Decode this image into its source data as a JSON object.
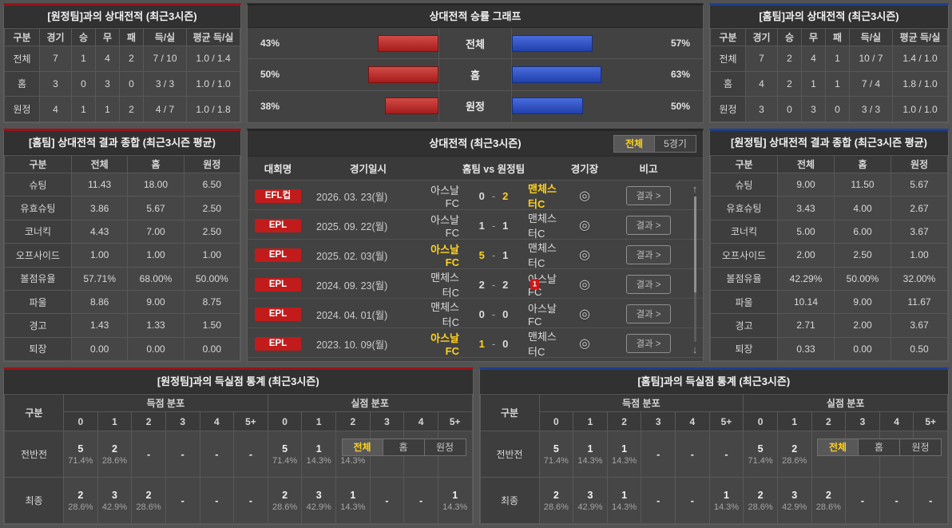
{
  "colors": {
    "accent_red": "#99131a",
    "accent_blue": "#1c3f8e",
    "bar_red": "#b52222",
    "bar_blue": "#2c53c4",
    "highlight_yellow": "#ffd21e",
    "badge_red": "#c21b1b"
  },
  "icons": {
    "scroll_up": "↑",
    "scroll_down": "↓",
    "stadium": "◎"
  },
  "vs_away_record": {
    "title": "[원정팀]과의 상대전적 (최근3시즌)",
    "headers": [
      "구분",
      "경기",
      "승",
      "무",
      "패",
      "득/실",
      "평균 득/실"
    ],
    "rows": [
      {
        "label": "전체",
        "games": "7",
        "win": "1",
        "draw": "4",
        "loss": "2",
        "score": "7 / 10",
        "avg": "1.0 / 1.4"
      },
      {
        "label": "홈",
        "games": "3",
        "win": "0",
        "draw": "3",
        "loss": "0",
        "score": "3 / 3",
        "avg": "1.0 / 1.0"
      },
      {
        "label": "원정",
        "games": "4",
        "win": "1",
        "draw": "1",
        "loss": "2",
        "score": "4 / 7",
        "avg": "1.0 / 1.8"
      }
    ]
  },
  "winrate_graph": {
    "title": "상대전적 승률 그래프",
    "rows": [
      {
        "label": "전체",
        "left_pct": 43,
        "left_pct_label": "43%",
        "right_pct": 57,
        "right_pct_label": "57%"
      },
      {
        "label": "홈",
        "left_pct": 50,
        "left_pct_label": "50%",
        "right_pct": 63,
        "right_pct_label": "63%"
      },
      {
        "label": "원정",
        "left_pct": 38,
        "left_pct_label": "38%",
        "right_pct": 50,
        "right_pct_label": "50%"
      }
    ]
  },
  "vs_home_record": {
    "title": "[홈팀]과의 상대전적 (최근3시즌)",
    "headers": [
      "구분",
      "경기",
      "승",
      "무",
      "패",
      "득/실",
      "평균 득/실"
    ],
    "rows": [
      {
        "label": "전체",
        "games": "7",
        "win": "2",
        "draw": "4",
        "loss": "1",
        "score": "10 / 7",
        "avg": "1.4 / 1.0"
      },
      {
        "label": "홈",
        "games": "4",
        "win": "2",
        "draw": "1",
        "loss": "1",
        "score": "7 / 4",
        "avg": "1.8 / 1.0"
      },
      {
        "label": "원정",
        "games": "3",
        "win": "0",
        "draw": "3",
        "loss": "0",
        "score": "3 / 3",
        "avg": "1.0 / 1.0"
      }
    ]
  },
  "home_summary": {
    "title": "[홈팀] 상대전적 결과 종합 (최근3시즌 평균)",
    "headers": [
      "구분",
      "전체",
      "홈",
      "원정"
    ],
    "rows": [
      {
        "label": "슈팅",
        "total": "11.43",
        "home": "18.00",
        "away": "6.50"
      },
      {
        "label": "유효슈팅",
        "total": "3.86",
        "home": "5.67",
        "away": "2.50"
      },
      {
        "label": "코너킥",
        "total": "4.43",
        "home": "7.00",
        "away": "2.50"
      },
      {
        "label": "오프사이드",
        "total": "1.00",
        "home": "1.00",
        "away": "1.00"
      },
      {
        "label": "볼점유율",
        "total": "57.71%",
        "home": "68.00%",
        "away": "50.00%"
      },
      {
        "label": "파울",
        "total": "8.86",
        "home": "9.00",
        "away": "8.75"
      },
      {
        "label": "경고",
        "total": "1.43",
        "home": "1.33",
        "away": "1.50"
      },
      {
        "label": "퇴장",
        "total": "0.00",
        "home": "0.00",
        "away": "0.00"
      }
    ]
  },
  "h2h_matches": {
    "title": "상대전적 (최근3시즌)",
    "tabs": {
      "all": "전체",
      "five": "5경기"
    },
    "headers": {
      "league": "대회명",
      "date": "경기일시",
      "match": "홈팀 vs 원정팀",
      "stadium": "경기장",
      "note": "비고"
    },
    "score_sep": "-",
    "result_button": "결과 >",
    "rows": [
      {
        "league": "EFL컵",
        "date": "2026. 03. 23(월)",
        "home": "아스날FC",
        "home_score": "0",
        "away_score": "2",
        "away": "맨체스터C",
        "home_win": "",
        "away_win": "1",
        "red_card": ""
      },
      {
        "league": "EPL",
        "date": "2025. 09. 22(월)",
        "home": "아스날FC",
        "home_score": "1",
        "away_score": "1",
        "away": "맨체스터C",
        "home_win": "",
        "away_win": "",
        "red_card": ""
      },
      {
        "league": "EPL",
        "date": "2025. 02. 03(월)",
        "home": "아스날FC",
        "home_score": "5",
        "away_score": "1",
        "away": "맨체스터C",
        "home_win": "1",
        "away_win": "",
        "red_card": ""
      },
      {
        "league": "EPL",
        "date": "2024. 09. 23(월)",
        "home": "맨체스터C",
        "home_score": "2",
        "away_score": "2",
        "away": "아스날FC",
        "home_win": "",
        "away_win": "",
        "red_card": "1"
      },
      {
        "league": "EPL",
        "date": "2024. 04. 01(월)",
        "home": "맨체스터C",
        "home_score": "0",
        "away_score": "0",
        "away": "아스날FC",
        "home_win": "",
        "away_win": "",
        "red_card": ""
      },
      {
        "league": "EPL",
        "date": "2023. 10. 09(월)",
        "home": "아스날FC",
        "home_score": "1",
        "away_score": "0",
        "away": "맨체스터C",
        "home_win": "1",
        "away_win": "",
        "red_card": ""
      }
    ]
  },
  "away_summary": {
    "title": "[원정팀] 상대전적 결과 종합 (최근3시즌 평균)",
    "headers": [
      "구분",
      "전체",
      "홈",
      "원정"
    ],
    "rows": [
      {
        "label": "슈팅",
        "total": "9.00",
        "home": "11.50",
        "away": "5.67"
      },
      {
        "label": "유효슈팅",
        "total": "3.43",
        "home": "4.00",
        "away": "2.67"
      },
      {
        "label": "코너킥",
        "total": "5.00",
        "home": "6.00",
        "away": "3.67"
      },
      {
        "label": "오프사이드",
        "total": "2.00",
        "home": "2.50",
        "away": "1.00"
      },
      {
        "label": "볼점유율",
        "total": "42.29%",
        "home": "50.00%",
        "away": "32.00%"
      },
      {
        "label": "파울",
        "total": "10.14",
        "home": "9.00",
        "away": "11.67"
      },
      {
        "label": "경고",
        "total": "2.71",
        "home": "2.00",
        "away": "3.67"
      },
      {
        "label": "퇴장",
        "total": "0.33",
        "home": "0.00",
        "away": "0.50"
      }
    ]
  },
  "away_goal_stats": {
    "title": "[원정팀]과의 득실점 통계 (최근3시즌)",
    "tabs": {
      "all": "전체",
      "home": "홈",
      "away": "원정"
    },
    "col_header": "구분",
    "groups": {
      "scored": "득점 분포",
      "conceded": "실점 분포"
    },
    "bins": [
      "0",
      "1",
      "2",
      "3",
      "4",
      "5+"
    ],
    "rows": [
      {
        "label": "전반전",
        "cells": [
          {
            "n": "5",
            "p": "71.4%"
          },
          {
            "n": "2",
            "p": "28.6%"
          },
          {
            "n": "-",
            "p": ""
          },
          {
            "n": "-",
            "p": ""
          },
          {
            "n": "-",
            "p": ""
          },
          {
            "n": "-",
            "p": ""
          },
          {
            "n": "5",
            "p": "71.4%"
          },
          {
            "n": "1",
            "p": "14.3%"
          },
          {
            "n": "1",
            "p": "14.3%"
          },
          {
            "n": "-",
            "p": ""
          },
          {
            "n": "-",
            "p": ""
          },
          {
            "n": "-",
            "p": ""
          }
        ]
      },
      {
        "label": "최종",
        "cells": [
          {
            "n": "2",
            "p": "28.6%"
          },
          {
            "n": "3",
            "p": "42.9%"
          },
          {
            "n": "2",
            "p": "28.6%"
          },
          {
            "n": "-",
            "p": ""
          },
          {
            "n": "-",
            "p": ""
          },
          {
            "n": "-",
            "p": ""
          },
          {
            "n": "2",
            "p": "28.6%"
          },
          {
            "n": "3",
            "p": "42.9%"
          },
          {
            "n": "1",
            "p": "14.3%"
          },
          {
            "n": "-",
            "p": ""
          },
          {
            "n": "-",
            "p": ""
          },
          {
            "n": "1",
            "p": "14.3%"
          }
        ]
      }
    ]
  },
  "home_goal_stats": {
    "title": "[홈팀]과의 득실점 통계 (최근3시즌)",
    "tabs": {
      "all": "전체",
      "home": "홈",
      "away": "원정"
    },
    "col_header": "구분",
    "groups": {
      "scored": "득점 분포",
      "conceded": "실점 분포"
    },
    "bins": [
      "0",
      "1",
      "2",
      "3",
      "4",
      "5+"
    ],
    "rows": [
      {
        "label": "전반전",
        "cells": [
          {
            "n": "5",
            "p": "71.4%"
          },
          {
            "n": "1",
            "p": "14.3%"
          },
          {
            "n": "1",
            "p": "14.3%"
          },
          {
            "n": "-",
            "p": ""
          },
          {
            "n": "-",
            "p": ""
          },
          {
            "n": "-",
            "p": ""
          },
          {
            "n": "5",
            "p": "71.4%"
          },
          {
            "n": "2",
            "p": "28.6%"
          },
          {
            "n": "-",
            "p": ""
          },
          {
            "n": "-",
            "p": ""
          },
          {
            "n": "-",
            "p": ""
          },
          {
            "n": "-",
            "p": ""
          }
        ]
      },
      {
        "label": "최종",
        "cells": [
          {
            "n": "2",
            "p": "28.6%"
          },
          {
            "n": "3",
            "p": "42.9%"
          },
          {
            "n": "1",
            "p": "14.3%"
          },
          {
            "n": "-",
            "p": ""
          },
          {
            "n": "-",
            "p": ""
          },
          {
            "n": "1",
            "p": "14.3%"
          },
          {
            "n": "2",
            "p": "28.6%"
          },
          {
            "n": "3",
            "p": "42.9%"
          },
          {
            "n": "2",
            "p": "28.6%"
          },
          {
            "n": "-",
            "p": ""
          },
          {
            "n": "-",
            "p": ""
          },
          {
            "n": "-",
            "p": ""
          }
        ]
      }
    ]
  },
  "chart_data": {
    "type": "bar",
    "title": "상대전적 승률 그래프",
    "categories": [
      "전체",
      "홈",
      "원정"
    ],
    "series": [
      {
        "name": "red-left",
        "values": [
          43,
          50,
          38
        ]
      },
      {
        "name": "blue-right",
        "values": [
          57,
          63,
          50
        ]
      }
    ],
    "unit": "%",
    "xlim": [
      0,
      100
    ],
    "legend": "none",
    "orientation": "horizontal-mirrored"
  }
}
